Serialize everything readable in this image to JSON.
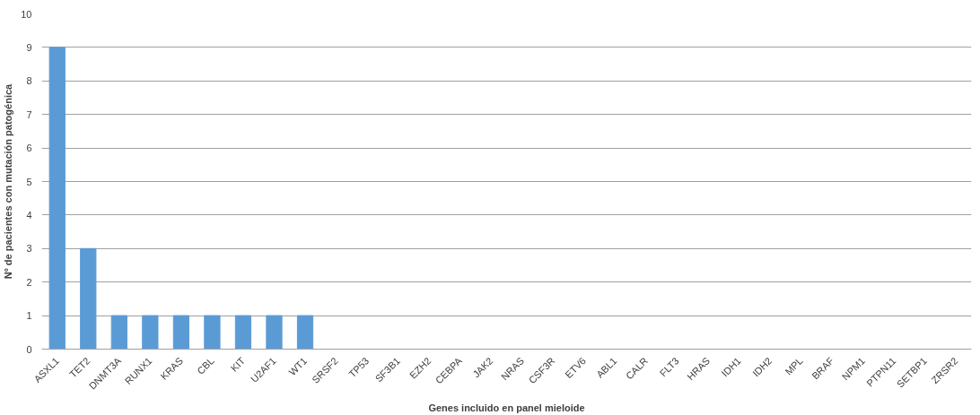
{
  "chart_data": {
    "type": "bar",
    "xlabel": "Genes incluido en panel mieloide",
    "ylabel": "Nº de pacientes con mutación patogénica",
    "categories": [
      "ASXL1",
      "TET2",
      "DNMT3A",
      "RUNX1",
      "KRAS",
      "CBL",
      "KIT",
      "U2AF1",
      "WT1",
      "SRSF2",
      "TP53",
      "SF3B1",
      "EZH2",
      "CEBPA",
      "JAK2",
      "NRAS",
      "CSF3R",
      "ETV6",
      "ABL1",
      "CALR",
      "FLT3",
      "HRAS",
      "IDH1",
      "IDH2",
      "MPL",
      "BRAF",
      "NPM1",
      "PTPN11",
      "SETBP1",
      "ZRSR2"
    ],
    "values": [
      9,
      3,
      1,
      1,
      1,
      1,
      1,
      1,
      1,
      0,
      0,
      0,
      0,
      0,
      0,
      0,
      0,
      0,
      0,
      0,
      0,
      0,
      0,
      0,
      0,
      0,
      0,
      0,
      0,
      0
    ],
    "color": "#5b9bd5",
    "ylim": [
      0,
      10
    ],
    "yticks": [
      0,
      1,
      2,
      3,
      4,
      5,
      6,
      7,
      8,
      9,
      10
    ],
    "grid": "y"
  }
}
